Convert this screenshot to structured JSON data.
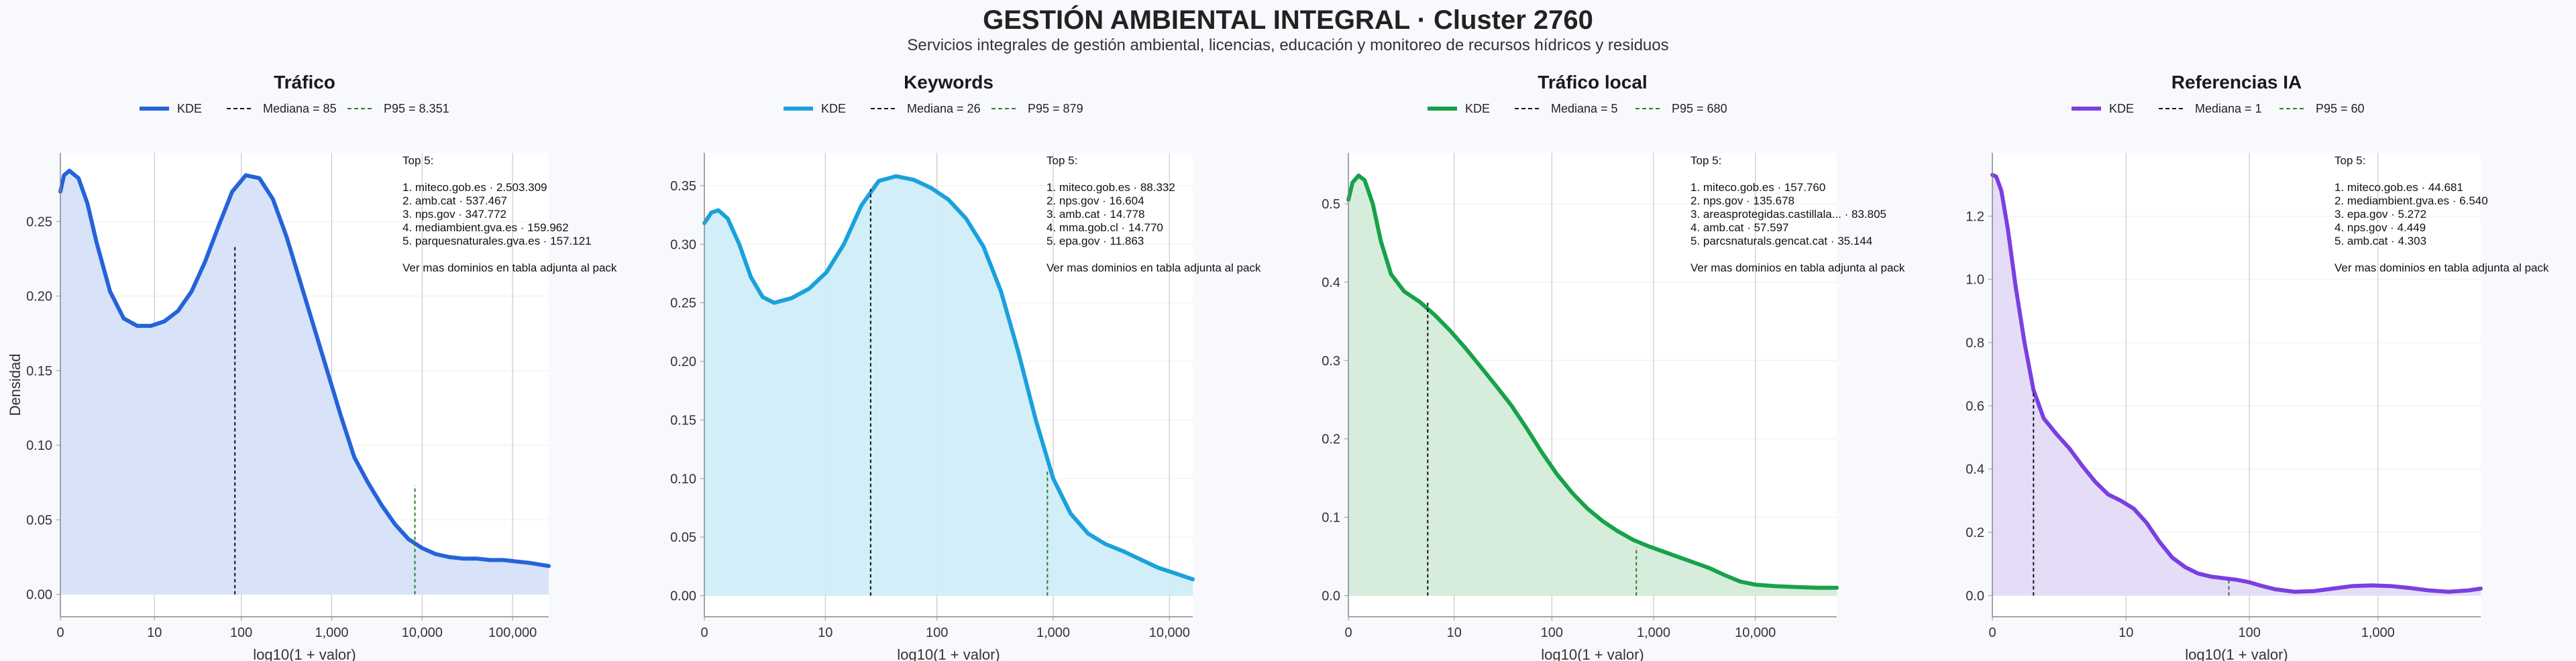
{
  "header": {
    "title": "GESTIÓN AMBIENTAL INTEGRAL · Cluster 2760",
    "subtitle": "Servicios integrales de gestión ambiental, licencias, educación y monitoreo de recursos hídricos y residuos"
  },
  "chart_data": [
    {
      "type": "area",
      "title": "Tráfico",
      "color": "#2563d9",
      "fill": "#d6e2f9",
      "xlabel": "log10(1 + valor)",
      "ylabel": "Densidad",
      "xlim": [
        0,
        5.4
      ],
      "ylim": [
        -0.015,
        0.296
      ],
      "xticks": [
        {
          "v": 0,
          "label": "0"
        },
        {
          "v": 1.04,
          "label": "10"
        },
        {
          "v": 2.0,
          "label": "100"
        },
        {
          "v": 3.0,
          "label": "1,000"
        },
        {
          "v": 4.0,
          "label": "10,000"
        },
        {
          "v": 5.0,
          "label": "100,000"
        }
      ],
      "yticks": [
        {
          "v": 0,
          "label": "0.00"
        },
        {
          "v": 0.05,
          "label": "0.05"
        },
        {
          "v": 0.1,
          "label": "0.10"
        },
        {
          "v": 0.15,
          "label": "0.15"
        },
        {
          "v": 0.2,
          "label": "0.20"
        },
        {
          "v": 0.25,
          "label": "0.25"
        }
      ],
      "series": [
        {
          "name": "KDE",
          "x": [
            0,
            0.04,
            0.1,
            0.2,
            0.3,
            0.4,
            0.55,
            0.7,
            0.85,
            1.0,
            1.15,
            1.3,
            1.45,
            1.6,
            1.75,
            1.9,
            2.05,
            2.2,
            2.35,
            2.5,
            2.65,
            2.8,
            2.95,
            3.1,
            3.25,
            3.4,
            3.55,
            3.7,
            3.85,
            4.0,
            4.15,
            4.3,
            4.45,
            4.6,
            4.75,
            4.9,
            5.05,
            5.2,
            5.4
          ],
          "y": [
            0.27,
            0.281,
            0.284,
            0.279,
            0.262,
            0.236,
            0.203,
            0.185,
            0.18,
            0.18,
            0.183,
            0.19,
            0.203,
            0.223,
            0.247,
            0.27,
            0.281,
            0.279,
            0.265,
            0.24,
            0.21,
            0.18,
            0.15,
            0.12,
            0.092,
            0.075,
            0.06,
            0.047,
            0.037,
            0.031,
            0.027,
            0.025,
            0.024,
            0.024,
            0.023,
            0.023,
            0.022,
            0.021,
            0.019
          ]
        }
      ],
      "markers": [
        {
          "name": "Mediana = 85",
          "x": 1.93,
          "y": 0.233,
          "color": "#111111"
        },
        {
          "name": "P95 = 8.351",
          "x": 3.92,
          "y": 0.073,
          "color": "#2c7d2c"
        }
      ],
      "annotation": {
        "heading": "Top 5:",
        "items": [
          "1. miteco.gob.es · 2.503.309",
          "2. amb.cat · 537.467",
          "3. nps.gov · 347.772",
          "4. mediambient.gva.es · 159.962",
          "5. parquesnaturales.gva.es · 157.121"
        ],
        "footer": "Ver mas dominios en tabla adjunta al pack"
      }
    },
    {
      "type": "area",
      "title": "Keywords",
      "color": "#1aa1dd",
      "fill": "#d0edf8",
      "xlabel": "log10(1 + valor)",
      "ylabel": "",
      "xlim": [
        0,
        4.2
      ],
      "ylim": [
        -0.018,
        0.378
      ],
      "xticks": [
        {
          "v": 0,
          "label": "0"
        },
        {
          "v": 1.04,
          "label": "10"
        },
        {
          "v": 2.0,
          "label": "100"
        },
        {
          "v": 3.0,
          "label": "1,000"
        },
        {
          "v": 4.0,
          "label": "10,000"
        }
      ],
      "yticks": [
        {
          "v": 0,
          "label": "0.00"
        },
        {
          "v": 0.05,
          "label": "0.05"
        },
        {
          "v": 0.1,
          "label": "0.10"
        },
        {
          "v": 0.15,
          "label": "0.15"
        },
        {
          "v": 0.2,
          "label": "0.20"
        },
        {
          "v": 0.25,
          "label": "0.25"
        },
        {
          "v": 0.3,
          "label": "0.30"
        },
        {
          "v": 0.35,
          "label": "0.35"
        }
      ],
      "series": [
        {
          "name": "KDE",
          "x": [
            0,
            0.06,
            0.12,
            0.2,
            0.3,
            0.4,
            0.5,
            0.6,
            0.75,
            0.9,
            1.05,
            1.2,
            1.35,
            1.5,
            1.65,
            1.8,
            1.95,
            2.1,
            2.25,
            2.4,
            2.55,
            2.7,
            2.85,
            3.0,
            3.15,
            3.3,
            3.45,
            3.6,
            3.75,
            3.9,
            4.05,
            4.2
          ],
          "y": [
            0.318,
            0.327,
            0.329,
            0.322,
            0.3,
            0.272,
            0.255,
            0.25,
            0.254,
            0.262,
            0.276,
            0.3,
            0.333,
            0.354,
            0.358,
            0.355,
            0.348,
            0.338,
            0.322,
            0.298,
            0.26,
            0.208,
            0.15,
            0.1,
            0.07,
            0.053,
            0.044,
            0.038,
            0.031,
            0.024,
            0.019,
            0.014
          ]
        }
      ],
      "markers": [
        {
          "name": "Mediana = 26",
          "x": 1.43,
          "y": 0.347,
          "color": "#111111"
        },
        {
          "name": "P95 = 879",
          "x": 2.95,
          "y": 0.108,
          "color": "#2c7d2c"
        }
      ],
      "annotation": {
        "heading": "Top 5:",
        "items": [
          "1. miteco.gob.es · 88.332",
          "2. nps.gov · 16.604",
          "3. amb.cat · 14.778",
          "4. mma.gob.cl · 14.770",
          "5. epa.gov · 11.863"
        ],
        "footer": "Ver mas dominios en tabla adjunta al pack"
      }
    },
    {
      "type": "area",
      "title": "Tráfico local",
      "color": "#17a24a",
      "fill": "#d4ecd9",
      "xlabel": "log10(1 + valor)",
      "ylabel": "",
      "xlim": [
        0,
        4.8
      ],
      "ylim": [
        -0.027,
        0.565
      ],
      "xticks": [
        {
          "v": 0,
          "label": "0"
        },
        {
          "v": 1.04,
          "label": "10"
        },
        {
          "v": 2.0,
          "label": "100"
        },
        {
          "v": 3.0,
          "label": "1,000"
        },
        {
          "v": 4.0,
          "label": "10,000"
        }
      ],
      "yticks": [
        {
          "v": 0,
          "label": "0.0"
        },
        {
          "v": 0.1,
          "label": "0.1"
        },
        {
          "v": 0.2,
          "label": "0.2"
        },
        {
          "v": 0.3,
          "label": "0.3"
        },
        {
          "v": 0.4,
          "label": "0.4"
        },
        {
          "v": 0.5,
          "label": "0.5"
        }
      ],
      "series": [
        {
          "name": "KDE",
          "x": [
            0,
            0.04,
            0.1,
            0.16,
            0.24,
            0.32,
            0.42,
            0.55,
            0.7,
            0.85,
            1.0,
            1.15,
            1.3,
            1.45,
            1.6,
            1.75,
            1.9,
            2.05,
            2.2,
            2.35,
            2.5,
            2.65,
            2.8,
            2.95,
            3.1,
            3.25,
            3.4,
            3.55,
            3.7,
            3.85,
            4.0,
            4.2,
            4.4,
            4.6,
            4.8
          ],
          "y": [
            0.505,
            0.527,
            0.536,
            0.53,
            0.5,
            0.452,
            0.41,
            0.388,
            0.375,
            0.358,
            0.338,
            0.316,
            0.292,
            0.268,
            0.243,
            0.214,
            0.183,
            0.155,
            0.131,
            0.111,
            0.095,
            0.082,
            0.071,
            0.063,
            0.056,
            0.049,
            0.042,
            0.035,
            0.026,
            0.018,
            0.014,
            0.012,
            0.011,
            0.01,
            0.01
          ]
        }
      ],
      "markers": [
        {
          "name": "Mediana = 5",
          "x": 0.78,
          "y": 0.377,
          "color": "#111111"
        },
        {
          "name": "P95 = 680",
          "x": 2.83,
          "y": 0.062,
          "color": "#2c7d2c"
        }
      ],
      "annotation": {
        "heading": "Top 5:",
        "items": [
          "1. miteco.gob.es · 157.760",
          "2. nps.gov · 135.678",
          "3. areasprotegidas.castillala... · 83.805",
          "4. amb.cat · 57.597",
          "5. parcsnaturals.gencat.cat · 35.144"
        ],
        "footer": "Ver mas dominios en tabla adjunta al pack"
      }
    },
    {
      "type": "area",
      "title": "Referencias IA",
      "color": "#7b3fe0",
      "fill": "#e4dbf8",
      "xlabel": "log10(1 + valor)",
      "ylabel": "",
      "xlim": [
        0,
        3.8
      ],
      "ylim": [
        -0.067,
        1.4
      ],
      "xticks": [
        {
          "v": 0,
          "label": "0"
        },
        {
          "v": 1.04,
          "label": "10"
        },
        {
          "v": 2.0,
          "label": "100"
        },
        {
          "v": 3.0,
          "label": "1,000"
        }
      ],
      "yticks": [
        {
          "v": 0,
          "label": "0.0"
        },
        {
          "v": 0.2,
          "label": "0.2"
        },
        {
          "v": 0.4,
          "label": "0.4"
        },
        {
          "v": 0.6,
          "label": "0.6"
        },
        {
          "v": 0.8,
          "label": "0.8"
        },
        {
          "v": 1.0,
          "label": "1.0"
        },
        {
          "v": 1.2,
          "label": "1.2"
        }
      ],
      "series": [
        {
          "name": "KDE",
          "x": [
            0,
            0.03,
            0.07,
            0.12,
            0.18,
            0.25,
            0.32,
            0.4,
            0.5,
            0.6,
            0.7,
            0.8,
            0.9,
            1.0,
            1.1,
            1.2,
            1.3,
            1.4,
            1.5,
            1.6,
            1.7,
            1.8,
            1.9,
            2.0,
            2.1,
            2.2,
            2.35,
            2.5,
            2.65,
            2.8,
            2.95,
            3.1,
            3.25,
            3.4,
            3.55,
            3.7,
            3.8
          ],
          "y": [
            1.33,
            1.325,
            1.28,
            1.16,
            0.98,
            0.8,
            0.65,
            0.56,
            0.51,
            0.465,
            0.41,
            0.36,
            0.32,
            0.3,
            0.275,
            0.23,
            0.17,
            0.12,
            0.09,
            0.07,
            0.06,
            0.055,
            0.05,
            0.042,
            0.03,
            0.02,
            0.012,
            0.014,
            0.022,
            0.03,
            0.032,
            0.03,
            0.024,
            0.016,
            0.012,
            0.016,
            0.022
          ]
        }
      ],
      "markers": [
        {
          "name": "Mediana = 1",
          "x": 0.32,
          "y": 0.65,
          "color": "#111111"
        },
        {
          "name": "P95 = 60",
          "x": 1.84,
          "y": 0.053,
          "color": "#2c7d2c"
        }
      ],
      "annotation": {
        "heading": "Top 5:",
        "items": [
          "1. miteco.gob.es · 44.681",
          "2. mediambient.gva.es · 6.540",
          "3. epa.gov · 5.272",
          "4. nps.gov · 4.449",
          "5. amb.cat · 4.303"
        ],
        "footer": "Ver mas dominios en tabla adjunta al pack"
      }
    }
  ]
}
